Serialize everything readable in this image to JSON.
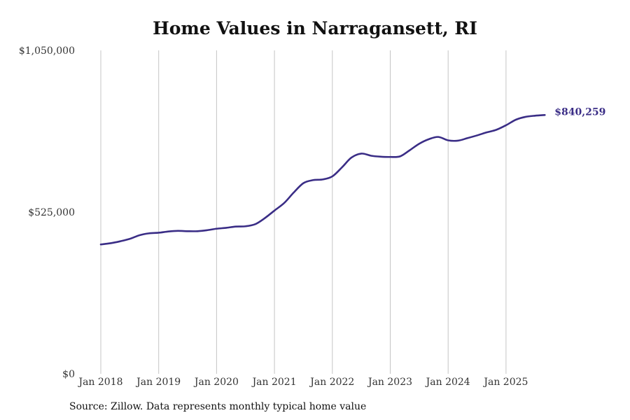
{
  "chart_data": {
    "type": "line",
    "title": "Home Values in Narragansett, RI",
    "xlabel": "",
    "ylabel": "",
    "ylim": [
      0,
      1050000
    ],
    "y_ticks": [
      {
        "value": 0,
        "label": "$0"
      },
      {
        "value": 525000,
        "label": "$525,000"
      },
      {
        "value": 1050000,
        "label": "$1,050,000"
      }
    ],
    "x_ticks": [
      {
        "value": 2018.0,
        "label": "Jan 2018"
      },
      {
        "value": 2019.0,
        "label": "Jan 2019"
      },
      {
        "value": 2020.0,
        "label": "Jan 2020"
      },
      {
        "value": 2021.0,
        "label": "Jan 2021"
      },
      {
        "value": 2022.0,
        "label": "Jan 2022"
      },
      {
        "value": 2023.0,
        "label": "Jan 2023"
      },
      {
        "value": 2024.0,
        "label": "Jan 2024"
      },
      {
        "value": 2025.0,
        "label": "Jan 2025"
      }
    ],
    "xlim": [
      2017.7,
      2026.1
    ],
    "vertical_gridlines": true,
    "line_color": "#3a2d86",
    "series": [
      {
        "name": "Typical home value",
        "end_label": "$840,259",
        "points": [
          [
            2018.0,
            420000
          ],
          [
            2018.17,
            424000
          ],
          [
            2018.33,
            430000
          ],
          [
            2018.5,
            438000
          ],
          [
            2018.67,
            450000
          ],
          [
            2018.83,
            456000
          ],
          [
            2019.0,
            458000
          ],
          [
            2019.17,
            462000
          ],
          [
            2019.33,
            464000
          ],
          [
            2019.5,
            463000
          ],
          [
            2019.67,
            463000
          ],
          [
            2019.83,
            466000
          ],
          [
            2020.0,
            471000
          ],
          [
            2020.17,
            474000
          ],
          [
            2020.33,
            478000
          ],
          [
            2020.5,
            479000
          ],
          [
            2020.67,
            486000
          ],
          [
            2020.83,
            505000
          ],
          [
            2021.0,
            530000
          ],
          [
            2021.17,
            555000
          ],
          [
            2021.33,
            588000
          ],
          [
            2021.5,
            619000
          ],
          [
            2021.67,
            629000
          ],
          [
            2021.83,
            631000
          ],
          [
            2022.0,
            641000
          ],
          [
            2022.17,
            671000
          ],
          [
            2022.33,
            702000
          ],
          [
            2022.5,
            715000
          ],
          [
            2022.67,
            708000
          ],
          [
            2022.83,
            705000
          ],
          [
            2023.0,
            704000
          ],
          [
            2023.17,
            706000
          ],
          [
            2023.33,
            725000
          ],
          [
            2023.5,
            747000
          ],
          [
            2023.67,
            762000
          ],
          [
            2023.83,
            769000
          ],
          [
            2024.0,
            758000
          ],
          [
            2024.17,
            757000
          ],
          [
            2024.33,
            765000
          ],
          [
            2024.5,
            774000
          ],
          [
            2024.67,
            784000
          ],
          [
            2024.83,
            792000
          ],
          [
            2025.0,
            807000
          ],
          [
            2025.17,
            825000
          ],
          [
            2025.33,
            834000
          ],
          [
            2025.5,
            838000
          ],
          [
            2025.67,
            840259
          ]
        ]
      }
    ]
  },
  "footer": {
    "source": "Source: Zillow. Data represents monthly typical home value"
  }
}
